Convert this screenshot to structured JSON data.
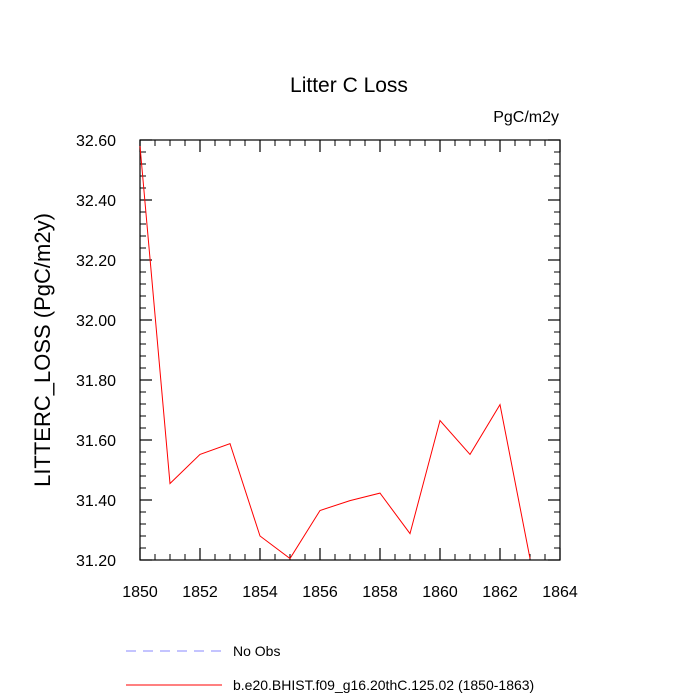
{
  "chart_data": {
    "type": "line",
    "title": "Litter C Loss",
    "units_label": "PgC/m2y",
    "ylabel": "LITTERC_LOSS  (PgC/m2y)",
    "xlabel": "",
    "xlim": [
      1850,
      1864
    ],
    "ylim": [
      31.2,
      32.6
    ],
    "x_ticks": [
      1850,
      1852,
      1854,
      1856,
      1858,
      1860,
      1862,
      1864
    ],
    "x_tick_labels": [
      "1850",
      "1852",
      "1854",
      "1856",
      "1858",
      "1860",
      "1862",
      "1864"
    ],
    "y_ticks": [
      31.2,
      31.4,
      31.6,
      31.8,
      32.0,
      32.2,
      32.4,
      32.6
    ],
    "y_tick_labels": [
      "31.20",
      "31.40",
      "31.60",
      "31.80",
      "32.00",
      "32.20",
      "32.40",
      "32.60"
    ],
    "grid": false,
    "legend_placement": "bottom",
    "series": [
      {
        "name": "b.e20.BHIST.f09_g16.20thC.125.02 (1850-1863)",
        "color": "#ff0000",
        "dash": false,
        "x": [
          1850,
          1851,
          1852,
          1853,
          1854,
          1855,
          1856,
          1857,
          1858,
          1859,
          1860,
          1861,
          1862,
          1863
        ],
        "y": [
          32.58,
          31.455,
          31.552,
          31.588,
          31.28,
          31.205,
          31.365,
          31.398,
          31.423,
          31.288,
          31.665,
          31.552,
          31.718,
          31.205
        ]
      }
    ],
    "legend": [
      {
        "label": "No Obs",
        "color": "#8888ff",
        "dash": true
      },
      {
        "label": "b.e20.BHIST.f09_g16.20thC.125.02 (1850-1863)",
        "color": "#ff0000",
        "dash": false
      }
    ]
  }
}
